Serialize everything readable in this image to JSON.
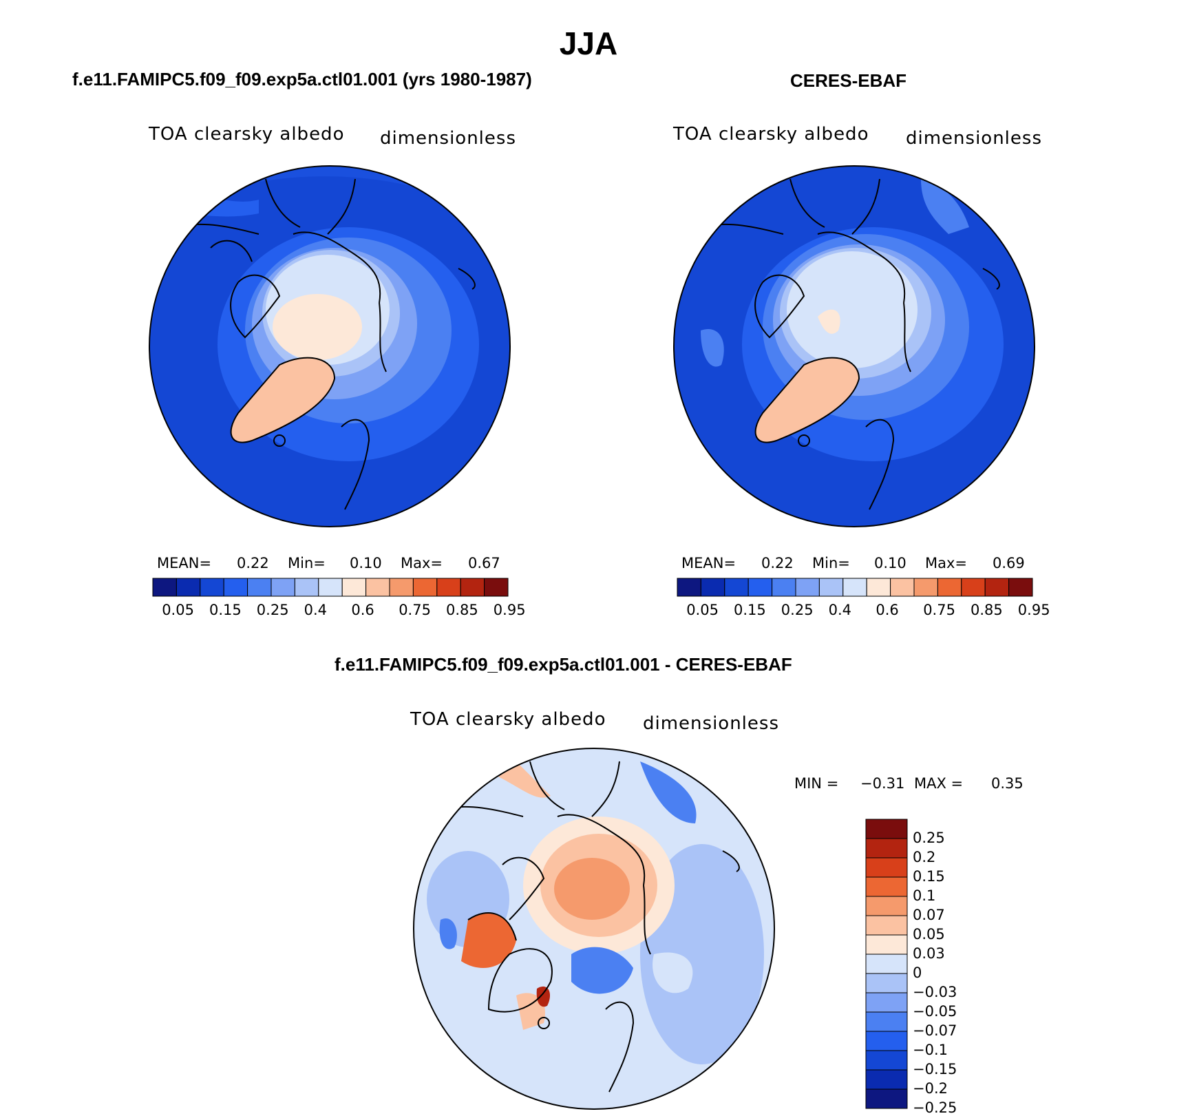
{
  "figure": {
    "season": "JJA",
    "panels": [
      {
        "title": "f.e11.FAMIPC5.f09_f09.exp5a.ctl01.001 (yrs 1980-1987)",
        "variable": "TOA clearsky albedo",
        "units": "dimensionless",
        "stats": {
          "mean_label": "MEAN=",
          "mean": "0.22",
          "min_label": "Min=",
          "min": "0.10",
          "max_label": "Max=",
          "max": "0.67"
        }
      },
      {
        "title": "CERES-EBAF",
        "variable": "TOA clearsky albedo",
        "units": "dimensionless",
        "stats": {
          "mean_label": "MEAN=",
          "mean": "0.22",
          "min_label": "Min=",
          "min": "0.10",
          "max_label": "Max=",
          "max": "0.69"
        }
      }
    ],
    "difference": {
      "title": "f.e11.FAMIPC5.f09_f09.exp5a.ctl01.001 - CERES-EBAF",
      "variable": "TOA clearsky albedo",
      "units": "dimensionless",
      "minmax": {
        "min_label": "MIN =",
        "min": "−0.31",
        "max_label": "MAX =",
        "max": "0.35"
      }
    }
  },
  "colorbar_abs": {
    "colors": [
      "#0d1780",
      "#0a2bb0",
      "#1447d4",
      "#245fee",
      "#4b80f2",
      "#7ea2f5",
      "#aac3f7",
      "#d6e4fa",
      "#fde8d8",
      "#fbc2a2",
      "#f59a6c",
      "#ec6733",
      "#d8401a",
      "#b32410",
      "#7a0d0d"
    ],
    "tick_labels": [
      "0.05",
      "0.15",
      "0.25",
      "0.4",
      "0.6",
      "0.75",
      "0.85",
      "0.95"
    ]
  },
  "colorbar_diff": {
    "colors": [
      "#7a0d0d",
      "#b32410",
      "#d8401a",
      "#ec6733",
      "#f59a6c",
      "#fbc2a2",
      "#fde8d8",
      "#d6e4fa",
      "#aac3f7",
      "#7ea2f5",
      "#4b80f2",
      "#245fee",
      "#1447d4",
      "#0a2bb0",
      "#0d1780"
    ],
    "tick_labels": [
      "0.25",
      "0.2",
      "0.15",
      "0.1",
      "0.07",
      "0.05",
      "0.03",
      "0",
      "−0.03",
      "−0.05",
      "−0.07",
      "−0.1",
      "−0.15",
      "−0.2",
      "−0.25"
    ]
  }
}
